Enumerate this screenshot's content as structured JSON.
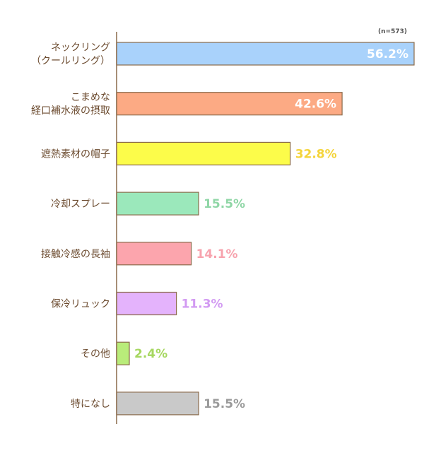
{
  "chart_data": {
    "type": "bar",
    "orientation": "horizontal",
    "note": "(n=573)",
    "categories": [
      [
        "ネックリング",
        "（クールリング）"
      ],
      [
        "こまめな",
        "経口補水液の摂取"
      ],
      [
        "遮熱素材の帽子"
      ],
      [
        "冷却スプレー"
      ],
      [
        "接触冷感の長袖"
      ],
      [
        "保冷リュック"
      ],
      [
        "その他"
      ],
      [
        "特になし"
      ]
    ],
    "values": [
      56.2,
      42.6,
      32.8,
      15.5,
      14.1,
      11.3,
      2.4,
      15.5
    ],
    "value_labels": [
      "56.2%",
      "42.6%",
      "32.8%",
      "15.5%",
      "14.1%",
      "11.3%",
      "2.4%",
      "15.5%"
    ],
    "unit": "%",
    "xlim": [
      0,
      56.2
    ],
    "grid": false,
    "bar_colors": [
      "#a9d2fb",
      "#fcaa84",
      "#fcfc4a",
      "#9be8bb",
      "#fca5ad",
      "#e4b3fc",
      "#b9ec7a",
      "#c9c9c9"
    ],
    "label_colors": [
      "#ffffff",
      "#ffffff",
      "#f4d43a",
      "#8fd6a6",
      "#f7a3ae",
      "#d29af2",
      "#a6d760",
      "#9a9a9a"
    ],
    "value_label_inside": [
      true,
      true,
      false,
      false,
      false,
      false,
      false,
      false
    ]
  }
}
